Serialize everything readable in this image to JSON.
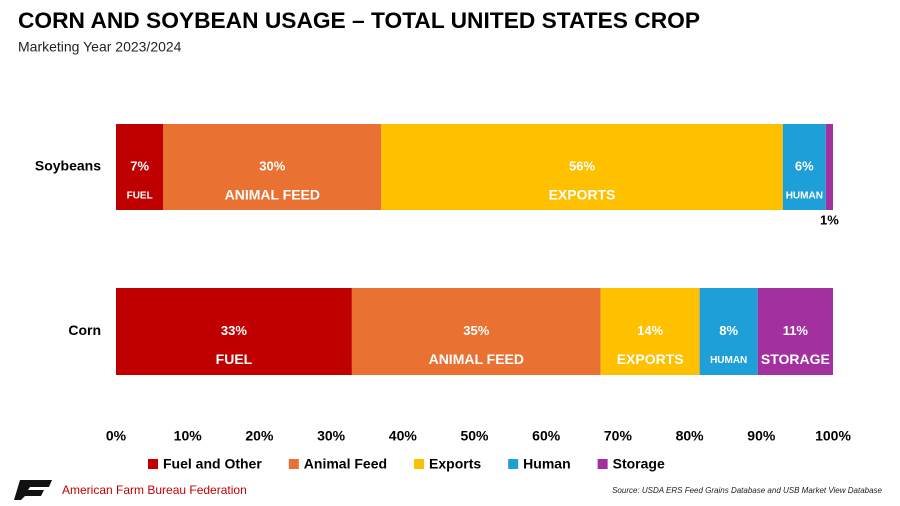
{
  "chart_data": {
    "type": "stacked-bar-horizontal",
    "title": "CORN AND SOYBEAN USAGE – TOTAL UNITED STATES CROP",
    "subtitle": "Marketing Year 2023/2024",
    "categories": [
      "Soybeans",
      "Corn"
    ],
    "series": [
      {
        "name": "Fuel and Other",
        "color": "#c00000",
        "values": [
          6.6,
          32.9
        ],
        "value_labels": [
          "7%",
          "33%"
        ]
      },
      {
        "name": "Animal Feed",
        "color": "#e97132",
        "values": [
          30.4,
          34.7
        ],
        "value_labels": [
          "30%",
          "35%"
        ]
      },
      {
        "name": "Exports",
        "color": "#ffc000",
        "values": [
          56,
          13.8
        ],
        "value_labels": [
          "56%",
          "14%"
        ]
      },
      {
        "name": "Human",
        "color": "#1f9fd8",
        "values": [
          6,
          8.1
        ],
        "value_labels": [
          "6%",
          "8%"
        ]
      },
      {
        "name": "Storage",
        "color": "#a2309f",
        "values": [
          1,
          10.5
        ],
        "value_labels": [
          "1%",
          "11%"
        ]
      }
    ],
    "segment_labels": [
      [
        "FUEL",
        "ANIMAL FEED",
        "EXPORTS",
        "HUMAN",
        null
      ],
      [
        "FUEL",
        "ANIMAL FEED",
        "EXPORTS",
        "HUMAN",
        "STORAGE"
      ]
    ],
    "xlim": [
      0,
      100
    ],
    "xticks": [
      {
        "value": 0,
        "label": "0%"
      },
      {
        "value": 10,
        "label": "10%"
      },
      {
        "value": 20,
        "label": "20%"
      },
      {
        "value": 30,
        "label": "30%"
      },
      {
        "value": 40,
        "label": "40%"
      },
      {
        "value": 50,
        "label": "50%"
      },
      {
        "value": 60,
        "label": "60%"
      },
      {
        "value": 70,
        "label": "70%"
      },
      {
        "value": 80,
        "label": "80%"
      },
      {
        "value": 90,
        "label": "90%"
      },
      {
        "value": 100,
        "label": "100%"
      }
    ],
    "legend": "bottom",
    "source": "Source: USDA ERS Feed Grains Database and USB Market View Database",
    "organization": "American Farm Bureau Federation"
  }
}
